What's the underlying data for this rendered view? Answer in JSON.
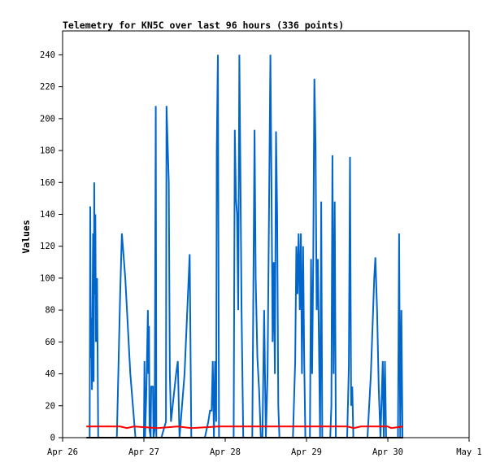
{
  "chart_data": {
    "type": "line",
    "title": "Telemetry for KN5C over last 96 hours (336 points)",
    "xlabel": "",
    "ylabel": "Values",
    "ylim": [
      0,
      255
    ],
    "xlim_days": [
      "Apr 26",
      "May 1"
    ],
    "x_ticks": [
      "Apr 26",
      "Apr 27",
      "Apr 28",
      "Apr 29",
      "Apr 30",
      "May 1"
    ],
    "y_ticks": [
      0,
      20,
      40,
      60,
      80,
      100,
      120,
      140,
      160,
      180,
      200,
      220,
      240
    ],
    "grid": false,
    "colors": {
      "axis": "#000000",
      "blue": "#0066cc",
      "red": "#ff0000",
      "black": "#000000"
    },
    "series": [
      {
        "color": "#0066cc",
        "points": [
          [
            "Apr 26 08:00",
            0
          ],
          [
            "Apr 26 08:10",
            145
          ],
          [
            "Apr 26 08:20",
            50
          ],
          [
            "Apr 26 08:30",
            75
          ],
          [
            "Apr 26 08:40",
            30
          ],
          [
            "Apr 26 08:50",
            80
          ],
          [
            "Apr 26 09:00",
            128
          ],
          [
            "Apr 26 09:10",
            35
          ],
          [
            "Apr 26 09:20",
            160
          ],
          [
            "Apr 26 09:30",
            90
          ],
          [
            "Apr 26 09:40",
            140
          ],
          [
            "Apr 26 09:50",
            60
          ],
          [
            "Apr 26 10:10",
            100
          ],
          [
            "Apr 26 10:30",
            0
          ],
          [
            "Apr 26 16:00",
            0
          ],
          [
            "Apr 26 17:00",
            90
          ],
          [
            "Apr 26 17:30",
            128
          ],
          [
            "Apr 26 18:30",
            100
          ],
          [
            "Apr 26 20:00",
            40
          ],
          [
            "Apr 26 21:30",
            0
          ],
          [
            "Apr 27 00:00",
            0
          ],
          [
            "Apr 27 00:10",
            48
          ],
          [
            "Apr 27 00:20",
            0
          ],
          [
            "Apr 27 00:40",
            25
          ],
          [
            "Apr 27 01:00",
            60
          ],
          [
            "Apr 27 01:10",
            80
          ],
          [
            "Apr 27 01:20",
            40
          ],
          [
            "Apr 27 01:30",
            70
          ],
          [
            "Apr 27 01:40",
            5
          ],
          [
            "Apr 27 02:00",
            0
          ],
          [
            "Apr 27 02:10",
            32
          ],
          [
            "Apr 27 02:40",
            32
          ],
          [
            "Apr 27 02:50",
            0
          ],
          [
            "Apr 27 03:10",
            5
          ],
          [
            "Apr 27 03:30",
            208
          ],
          [
            "Apr 27 03:40",
            0
          ],
          [
            "Apr 27 05:10",
            0
          ],
          [
            "Apr 27 06:30",
            10
          ],
          [
            "Apr 27 06:40",
            208
          ],
          [
            "Apr 27 07:20",
            160
          ],
          [
            "Apr 27 07:40",
            40
          ],
          [
            "Apr 27 08:00",
            10
          ],
          [
            "Apr 27 09:30",
            40
          ],
          [
            "Apr 27 10:00",
            48
          ],
          [
            "Apr 27 10:30",
            0
          ],
          [
            "Apr 27 12:00",
            40
          ],
          [
            "Apr 27 13:00",
            90
          ],
          [
            "Apr 27 13:30",
            115
          ],
          [
            "Apr 27 14:00",
            0
          ],
          [
            "Apr 27 18:00",
            0
          ],
          [
            "Apr 27 19:00",
            10
          ],
          [
            "Apr 27 19:30",
            17
          ],
          [
            "Apr 27 20:00",
            17
          ],
          [
            "Apr 27 20:20",
            48
          ],
          [
            "Apr 27 20:40",
            0
          ],
          [
            "Apr 27 21:00",
            48
          ],
          [
            "Apr 27 21:20",
            10
          ],
          [
            "Apr 27 21:30",
            180
          ],
          [
            "Apr 27 21:50",
            240
          ],
          [
            "Apr 27 22:10",
            0
          ],
          [
            "Apr 28 02:30",
            0
          ],
          [
            "Apr 28 02:50",
            193
          ],
          [
            "Apr 28 03:10",
            150
          ],
          [
            "Apr 28 03:30",
            140
          ],
          [
            "Apr 28 03:50",
            80
          ],
          [
            "Apr 28 04:10",
            240
          ],
          [
            "Apr 28 04:30",
            160
          ],
          [
            "Apr 28 04:50",
            80
          ],
          [
            "Apr 28 05:20",
            0
          ],
          [
            "Apr 28 08:00",
            0
          ],
          [
            "Apr 28 08:40",
            193
          ],
          [
            "Apr 28 09:00",
            100
          ],
          [
            "Apr 28 09:30",
            50
          ],
          [
            "Apr 28 10:00",
            30
          ],
          [
            "Apr 28 10:30",
            0
          ],
          [
            "Apr 28 11:00",
            0
          ],
          [
            "Apr 28 11:30",
            80
          ],
          [
            "Apr 28 12:00",
            0
          ],
          [
            "Apr 28 12:30",
            40
          ],
          [
            "Apr 28 13:20",
            240
          ],
          [
            "Apr 28 13:40",
            160
          ],
          [
            "Apr 28 14:00",
            60
          ],
          [
            "Apr 28 14:20",
            110
          ],
          [
            "Apr 28 14:40",
            40
          ],
          [
            "Apr 28 15:00",
            192
          ],
          [
            "Apr 28 15:20",
            140
          ],
          [
            "Apr 28 15:40",
            20
          ],
          [
            "Apr 28 16:00",
            0
          ],
          [
            "Apr 28 20:00",
            0
          ],
          [
            "Apr 28 20:40",
            48
          ],
          [
            "Apr 28 21:00",
            120
          ],
          [
            "Apr 28 21:20",
            90
          ],
          [
            "Apr 28 21:40",
            128
          ],
          [
            "Apr 28 22:00",
            80
          ],
          [
            "Apr 28 22:20",
            128
          ],
          [
            "Apr 28 22:40",
            40
          ],
          [
            "Apr 28 23:00",
            120
          ],
          [
            "Apr 28 23:20",
            48
          ],
          [
            "Apr 28 23:40",
            0
          ],
          [
            "Apr 29 01:00",
            0
          ],
          [
            "Apr 29 01:20",
            112
          ],
          [
            "Apr 29 01:40",
            40
          ],
          [
            "Apr 29 02:00",
            112
          ],
          [
            "Apr 29 02:20",
            225
          ],
          [
            "Apr 29 02:40",
            185
          ],
          [
            "Apr 29 03:00",
            80
          ],
          [
            "Apr 29 03:20",
            112
          ],
          [
            "Apr 29 03:40",
            60
          ],
          [
            "Apr 29 04:00",
            0
          ],
          [
            "Apr 29 04:20",
            148
          ],
          [
            "Apr 29 04:40",
            0
          ],
          [
            "Apr 29 07:00",
            0
          ],
          [
            "Apr 29 07:20",
            20
          ],
          [
            "Apr 29 07:40",
            177
          ],
          [
            "Apr 29 08:00",
            40
          ],
          [
            "Apr 29 08:20",
            148
          ],
          [
            "Apr 29 08:40",
            0
          ],
          [
            "Apr 29 12:00",
            0
          ],
          [
            "Apr 29 12:30",
            45
          ],
          [
            "Apr 29 12:50",
            176
          ],
          [
            "Apr 29 13:10",
            20
          ],
          [
            "Apr 29 13:30",
            32
          ],
          [
            "Apr 29 13:50",
            0
          ],
          [
            "Apr 29 18:00",
            0
          ],
          [
            "Apr 29 19:00",
            40
          ],
          [
            "Apr 29 20:00",
            100
          ],
          [
            "Apr 29 20:20",
            113
          ],
          [
            "Apr 29 20:50",
            80
          ],
          [
            "Apr 29 21:20",
            30
          ],
          [
            "Apr 29 21:50",
            0
          ],
          [
            "Apr 29 22:30",
            48
          ],
          [
            "Apr 29 22:50",
            0
          ],
          [
            "Apr 29 23:10",
            48
          ],
          [
            "Apr 29 23:30",
            0
          ],
          [
            "Apr 30 03:00",
            0
          ],
          [
            "Apr 30 03:20",
            128
          ],
          [
            "Apr 30 03:40",
            0
          ],
          [
            "Apr 30 04:00",
            80
          ],
          [
            "Apr 30 04:20",
            0
          ]
        ]
      },
      {
        "color": "#ff0000",
        "points": [
          [
            "Apr 26 07:00",
            7
          ],
          [
            "Apr 26 17:00",
            7
          ],
          [
            "Apr 26 19:00",
            6
          ],
          [
            "Apr 26 21:00",
            7
          ],
          [
            "Apr 27 04:00",
            6
          ],
          [
            "Apr 27 10:00",
            7
          ],
          [
            "Apr 27 14:00",
            6
          ],
          [
            "Apr 27 22:00",
            7
          ],
          [
            "Apr 28 08:00",
            7
          ],
          [
            "Apr 28 18:00",
            7
          ],
          [
            "Apr 29 12:00",
            7
          ],
          [
            "Apr 29 14:00",
            6
          ],
          [
            "Apr 29 16:00",
            7
          ],
          [
            "Apr 30 00:00",
            7
          ],
          [
            "Apr 30 01:00",
            6
          ],
          [
            "Apr 30 04:30",
            7
          ]
        ]
      },
      {
        "color": "#000000",
        "points": [
          [
            "Apr 26 07:00",
            0
          ],
          [
            "Apr 30 04:30",
            0
          ]
        ]
      }
    ]
  }
}
